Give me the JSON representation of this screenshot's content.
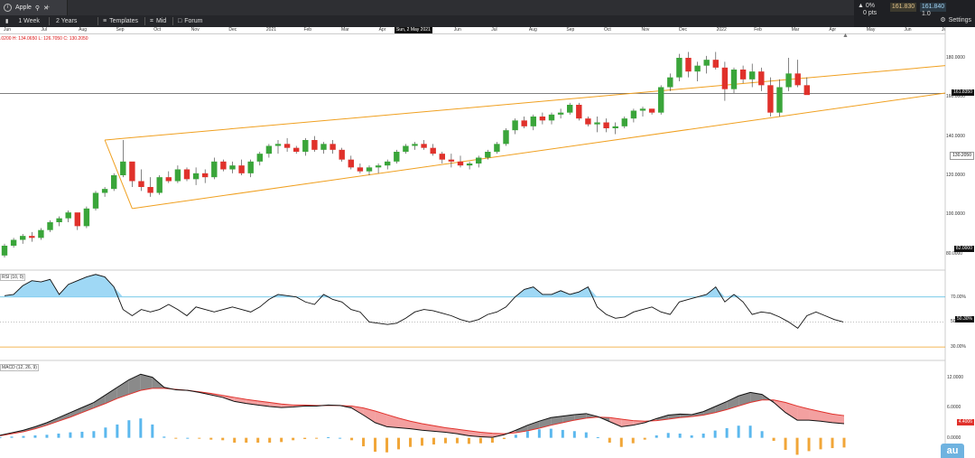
{
  "window": {
    "tab_title": "Apple",
    "add_tab": "+"
  },
  "toolbar": {
    "items": [
      {
        "label": "1 Week"
      },
      {
        "label": "2 Years"
      },
      {
        "label": "Templates"
      },
      {
        "label": "Mid"
      },
      {
        "label": "Forum"
      }
    ],
    "settings_label": "Settings"
  },
  "quote": {
    "change_pct": "0%",
    "change_pts": "0 pts",
    "bid": "161.830",
    "ask": "161.840",
    "size": "1.0"
  },
  "date_axis": {
    "labels": [
      "Jun",
      "Jul",
      "Aug",
      "Sep",
      "Oct",
      "Nov",
      "Dec",
      "2021",
      "Feb",
      "Mar",
      "Apr",
      "May",
      "Jun",
      "Jul",
      "Aug",
      "Sep",
      "Oct",
      "Nov",
      "Dec",
      "2022",
      "Feb",
      "Mar",
      "Apr",
      "May",
      "Jun",
      "Jul"
    ],
    "crosshair_label": "Sun, 2 May 2021"
  },
  "ohlc": {
    "text": ".0200  H: 134.0650  L: 126.7050  C: 130.2050"
  },
  "price_axis": {
    "ticks": [
      "180.0000",
      "160.0000",
      "140.0000",
      "120.0000",
      "100.0000",
      "80.0000"
    ],
    "markers": [
      {
        "label": "161.8350",
        "type": "current"
      },
      {
        "label": "130.2050",
        "type": "crosshair"
      },
      {
        "label": "82.0000",
        "type": "low"
      }
    ]
  },
  "rsi": {
    "label": "RSI (10, 0)",
    "ticks": [
      "70.00%",
      "50.00%",
      "30.00%"
    ],
    "current": "50.30%"
  },
  "macd": {
    "label": "MACD (12, 26, 9)",
    "ticks": [
      "12.0000",
      "6.0000",
      "0.0000",
      "-3.0000"
    ],
    "current": "4.4006"
  },
  "colors": {
    "up": "#3aa53a",
    "down": "#e0312b",
    "channel": "#f0a020",
    "rsi_fill": "#9fd8f5",
    "macd_hist_up": "#5bb8ee",
    "macd_hist_down": "#f1a638"
  },
  "chart_data": {
    "type": "line",
    "title": "",
    "xlabel": "",
    "ylabel": "",
    "ylim": [
      72,
      192
    ],
    "candles": [
      [
        79,
        85,
        78,
        84
      ],
      [
        84,
        88,
        83,
        87
      ],
      [
        87,
        90,
        85,
        89
      ],
      [
        89,
        91,
        86,
        88
      ],
      [
        88,
        93,
        87,
        92
      ],
      [
        92,
        97,
        91,
        96
      ],
      [
        96,
        99,
        94,
        98
      ],
      [
        98,
        102,
        96,
        101
      ],
      [
        101,
        100,
        92,
        94
      ],
      [
        94,
        104,
        93,
        103
      ],
      [
        103,
        112,
        102,
        111
      ],
      [
        111,
        114,
        109,
        113
      ],
      [
        113,
        121,
        112,
        120
      ],
      [
        120,
        138,
        119,
        127
      ],
      [
        127,
        126,
        114,
        117
      ],
      [
        117,
        123,
        112,
        114
      ],
      [
        114,
        119,
        109,
        111
      ],
      [
        111,
        120,
        110,
        119
      ],
      [
        119,
        122,
        116,
        117
      ],
      [
        117,
        125,
        116,
        123
      ],
      [
        123,
        124,
        117,
        118
      ],
      [
        118,
        124,
        115,
        121
      ],
      [
        121,
        123,
        116,
        119
      ],
      [
        119,
        129,
        118,
        127
      ],
      [
        127,
        128,
        122,
        123
      ],
      [
        123,
        127,
        121,
        125
      ],
      [
        125,
        128,
        120,
        121
      ],
      [
        121,
        128,
        119,
        127
      ],
      [
        127,
        132,
        125,
        131
      ],
      [
        131,
        136,
        129,
        135
      ],
      [
        135,
        138,
        131,
        136
      ],
      [
        136,
        139,
        132,
        134
      ],
      [
        134,
        135,
        131,
        132
      ],
      [
        132,
        139,
        130,
        138
      ],
      [
        138,
        140,
        132,
        133
      ],
      [
        133,
        137,
        131,
        136
      ],
      [
        136,
        138,
        131,
        133
      ],
      [
        133,
        134,
        127,
        128
      ],
      [
        128,
        130,
        123,
        124
      ],
      [
        124,
        126,
        121,
        122
      ],
      [
        122,
        125,
        120,
        124
      ],
      [
        124,
        126,
        121,
        125
      ],
      [
        125,
        128,
        123,
        127
      ],
      [
        127,
        133,
        126,
        132
      ],
      [
        132,
        136,
        131,
        135
      ],
      [
        135,
        137,
        133,
        136
      ],
      [
        136,
        138,
        133,
        134
      ],
      [
        134,
        136,
        130,
        131
      ],
      [
        131,
        132,
        126,
        128
      ],
      [
        128,
        131,
        124,
        127
      ],
      [
        127,
        130,
        124,
        125
      ],
      [
        125,
        127,
        123,
        126
      ],
      [
        126,
        130,
        124,
        129
      ],
      [
        129,
        133,
        128,
        132
      ],
      [
        132,
        137,
        131,
        136
      ],
      [
        136,
        144,
        135,
        143
      ],
      [
        143,
        149,
        141,
        148
      ],
      [
        148,
        150,
        144,
        145
      ],
      [
        145,
        151,
        143,
        150
      ],
      [
        150,
        152,
        146,
        148
      ],
      [
        148,
        152,
        146,
        151
      ],
      [
        151,
        154,
        149,
        152
      ],
      [
        152,
        157,
        151,
        156
      ],
      [
        156,
        157,
        148,
        149
      ],
      [
        149,
        150,
        145,
        146
      ],
      [
        146,
        150,
        142,
        147
      ],
      [
        147,
        149,
        142,
        144
      ],
      [
        144,
        147,
        141,
        145
      ],
      [
        145,
        150,
        144,
        149
      ],
      [
        149,
        154,
        147,
        153
      ],
      [
        153,
        155,
        150,
        154
      ],
      [
        154,
        154,
        151,
        152
      ],
      [
        152,
        166,
        151,
        165
      ],
      [
        165,
        172,
        163,
        170
      ],
      [
        170,
        182,
        168,
        180
      ],
      [
        180,
        183,
        170,
        173
      ],
      [
        173,
        178,
        168,
        176
      ],
      [
        176,
        181,
        172,
        179
      ],
      [
        179,
        183,
        174,
        175
      ],
      [
        175,
        178,
        158,
        164
      ],
      [
        164,
        175,
        162,
        174
      ],
      [
        174,
        176,
        167,
        169
      ],
      [
        169,
        177,
        165,
        173
      ],
      [
        173,
        175,
        163,
        166
      ],
      [
        166,
        170,
        150,
        152
      ],
      [
        152,
        169,
        150,
        165
      ],
      [
        165,
        180,
        163,
        172
      ],
      [
        172,
        179,
        165,
        166
      ],
      [
        166,
        170,
        162,
        161
      ]
    ],
    "channel": {
      "upper": [
        [
          1,
          13
        ],
        [
          64,
          45
        ],
        [
          71,
          64
        ],
        [
          92,
          72
        ]
      ],
      "lower": [
        [
          1,
          16
        ],
        [
          92,
          61
        ]
      ]
    },
    "rsi_values": [
      71,
      72,
      79,
      83,
      82,
      84,
      72,
      80,
      83,
      86,
      88,
      86,
      78,
      60,
      55,
      60,
      58,
      60,
      64,
      60,
      55,
      62,
      60,
      58,
      60,
      62,
      60,
      58,
      62,
      68,
      72,
      71,
      70,
      66,
      64,
      72,
      68,
      66,
      60,
      58,
      50,
      49,
      48,
      49,
      53,
      58,
      60,
      59,
      57,
      55,
      52,
      50,
      52,
      56,
      58,
      62,
      70,
      76,
      78,
      72,
      72,
      75,
      72,
      74,
      78,
      62,
      56,
      53,
      54,
      58,
      60,
      62,
      58,
      56,
      66,
      68,
      70,
      72,
      78,
      66,
      72,
      66,
      56,
      58,
      57,
      54,
      50,
      45,
      55,
      58,
      55,
      52,
      50
    ],
    "macd_line": [
      0.5,
      1,
      1.5,
      2.2,
      3,
      4,
      5,
      6,
      7,
      8.5,
      10,
      11.5,
      12.6,
      12,
      10,
      9.5,
      9.4,
      9,
      8.5,
      8,
      7.2,
      6.8,
      6.5,
      6.2,
      6,
      6.1,
      6.3,
      6.3,
      6.5,
      6.4,
      5.9,
      4.5,
      3,
      2.2,
      2,
      1.8,
      1.5,
      1.3,
      1.1,
      0.8,
      0.4,
      0.2,
      0.1,
      0.6,
      1.5,
      2.5,
      3.3,
      4,
      4.3,
      4.6,
      4.8,
      4.2,
      3.2,
      2.2,
      2.5,
      3,
      3.8,
      4.5,
      4.7,
      4.6,
      5.2,
      6.2,
      7.2,
      8.3,
      9,
      8.6,
      7,
      5,
      3.5,
      3.5,
      3.3,
      3,
      2.8
    ],
    "signal_line": [
      0.4,
      0.8,
      1.2,
      1.8,
      2.5,
      3.3,
      4.1,
      5,
      5.9,
      6.8,
      7.8,
      8.6,
      9.4,
      9.8,
      9.8,
      9.6,
      9.4,
      9.1,
      8.8,
      8.4,
      8,
      7.6,
      7.3,
      7,
      6.7,
      6.5,
      6.5,
      6.4,
      6.4,
      6.4,
      6.3,
      5.9,
      5.3,
      4.6,
      3.9,
      3.3,
      2.8,
      2.4,
      2,
      1.7,
      1.4,
      1.1,
      0.9,
      0.8,
      1,
      1.4,
      1.9,
      2.5,
      3,
      3.5,
      3.9,
      4.1,
      4,
      3.7,
      3.4,
      3.3,
      3.4,
      3.7,
      4,
      4.2,
      4.5,
      5,
      5.6,
      6.3,
      7,
      7.5,
      7.5,
      7,
      6.3,
      5.7,
      5.2,
      4.7,
      4.4
    ]
  }
}
